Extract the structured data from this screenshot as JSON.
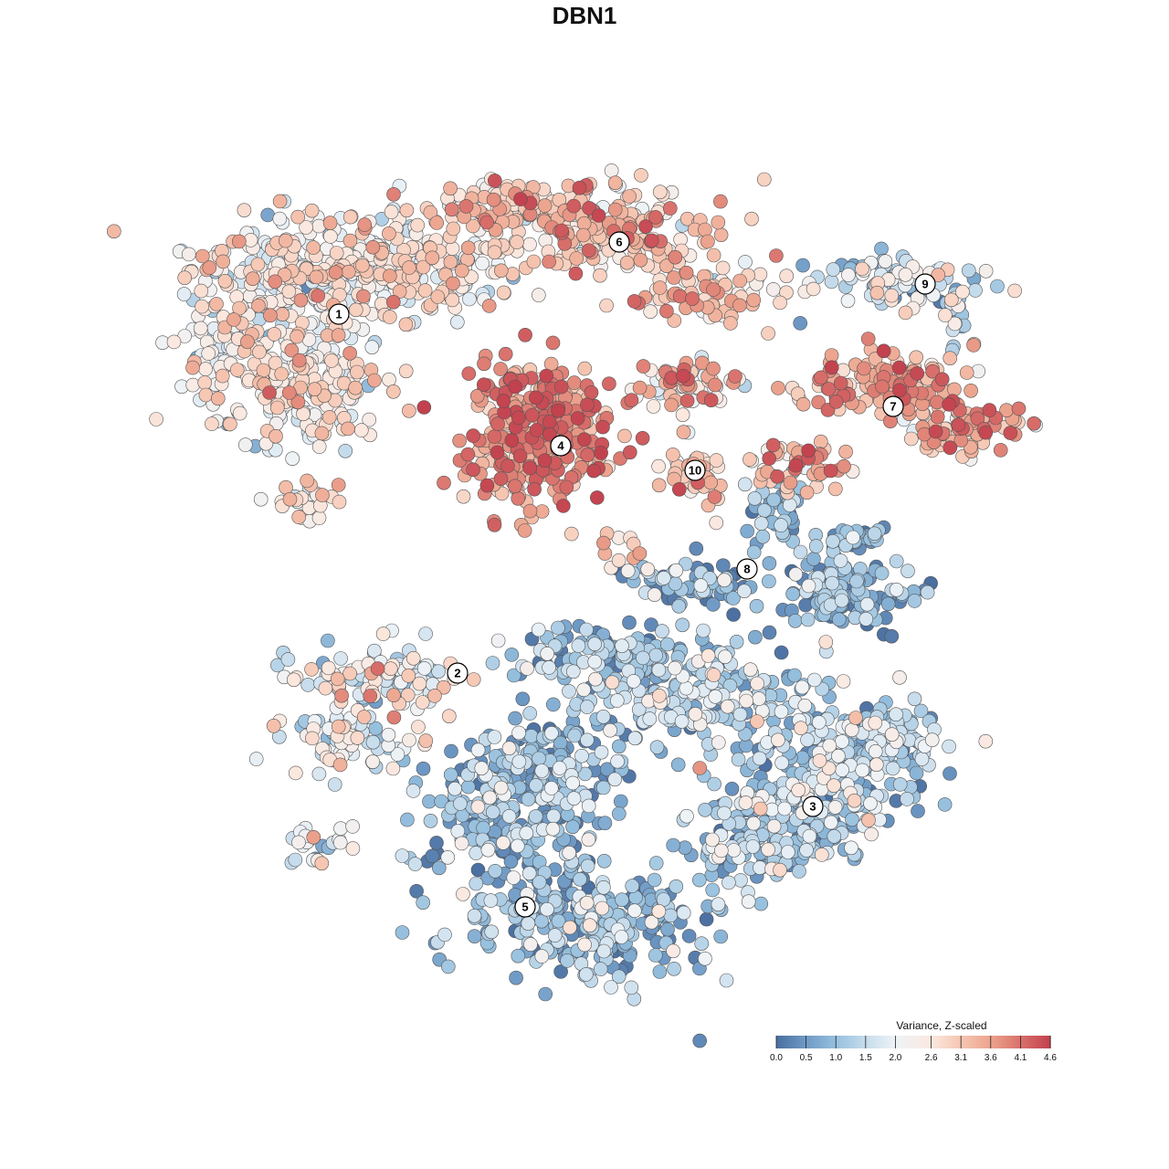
{
  "chart_data": {
    "type": "scatter",
    "title": "DBN1",
    "legend": {
      "title": "Variance, Z-scaled",
      "position": "bottom-right",
      "ticks": [
        "0.0",
        "0.5",
        "1.0",
        "1.5",
        "2.0",
        "2.6",
        "3.1",
        "3.6",
        "4.1",
        "4.6"
      ],
      "tick_values": [
        0.0,
        0.5,
        1.0,
        1.5,
        2.0,
        2.6,
        3.1,
        3.6,
        4.1,
        4.6
      ],
      "colors": [
        "#4a6fa0",
        "#6f9ac6",
        "#96c0de",
        "#c6dcec",
        "#eef3f7",
        "#fbe8df",
        "#f6c6b2",
        "#eca48e",
        "#d9706b",
        "#c2414e"
      ]
    },
    "clusters": [
      {
        "label": "1",
        "mean": 2.4
      },
      {
        "label": "2",
        "mean": 1.9
      },
      {
        "label": "3",
        "mean": 1.2
      },
      {
        "label": "4",
        "mean": 3.7
      },
      {
        "label": "5",
        "mean": 0.9
      },
      {
        "label": "6",
        "mean": 3.0
      },
      {
        "label": "7",
        "mean": 3.4
      },
      {
        "label": "8",
        "mean": 0.8
      },
      {
        "label": "9",
        "mean": 1.6
      },
      {
        "label": "10",
        "mean": 3.0
      }
    ],
    "grid": false,
    "axes": false
  }
}
